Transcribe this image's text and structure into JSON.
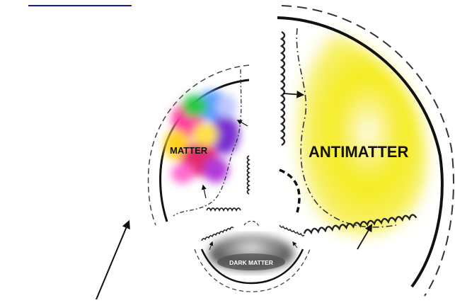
{
  "labels": {
    "matter": "MATTER",
    "antimatter": "ANTIMATTER",
    "dark_matter": "DARK MATTER"
  },
  "colors": {
    "antimatter_fill": "#f5ec1a",
    "line": "#111111",
    "top_underline": "#1a1aa0"
  },
  "icons": [
    "arrow-icon"
  ]
}
